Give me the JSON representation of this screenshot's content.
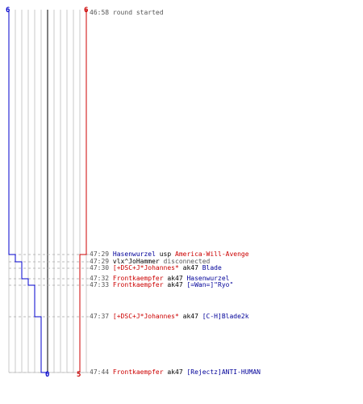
{
  "colors": {
    "blue_team": "#0000cc",
    "red_team": "#cc0000",
    "blue_name": "#000099",
    "red_name": "#cc0000",
    "grid": "#c8c8c8",
    "zero_line": "#555555",
    "dashed_guide": "#bbbbbb",
    "time_text": "#555555"
  },
  "axis": {
    "blue_start": "6",
    "red_start": "6",
    "blue_end": "0",
    "red_end": "5"
  },
  "events": [
    {
      "time": "46:58",
      "type": "system",
      "text": "round started"
    },
    {
      "time": "47:29",
      "type": "kill",
      "killer": "Hasenwurzel",
      "killer_team": "blue",
      "weapon": "usp",
      "victim": "America-Will-Avenge",
      "victim_team": "red"
    },
    {
      "time": "47:29",
      "type": "disconnect",
      "player": "vlx^JoHammer",
      "player_team": "dark",
      "text": "disconnected"
    },
    {
      "time": "47:30",
      "type": "kill",
      "killer": "[+DSC+J*Johannes*",
      "killer_team": "red",
      "weapon": "ak47",
      "victim": "Blade",
      "victim_team": "blue"
    },
    {
      "time": "47:32",
      "type": "kill",
      "killer": "Frontkaempfer",
      "killer_team": "red",
      "weapon": "ak47",
      "victim": "Hasenwurzel",
      "victim_team": "blue"
    },
    {
      "time": "47:33",
      "type": "kill",
      "killer": "Frontkaempfer",
      "killer_team": "red",
      "weapon": "ak47",
      "victim": "[=Wan=]\"Ryo\"",
      "victim_team": "blue"
    },
    {
      "time": "47:37",
      "type": "kill",
      "killer": "[+DSC+J*Johannes*",
      "killer_team": "red",
      "weapon": "ak47",
      "victim": "[C-H]Blade2k",
      "victim_team": "blue"
    },
    {
      "time": "47:44",
      "type": "kill",
      "killer": "Frontkaempfer",
      "killer_team": "red",
      "weapon": "ak47",
      "victim": "[Rejectz]ANTI-HUMAN",
      "victim_team": "blue"
    }
  ]
}
